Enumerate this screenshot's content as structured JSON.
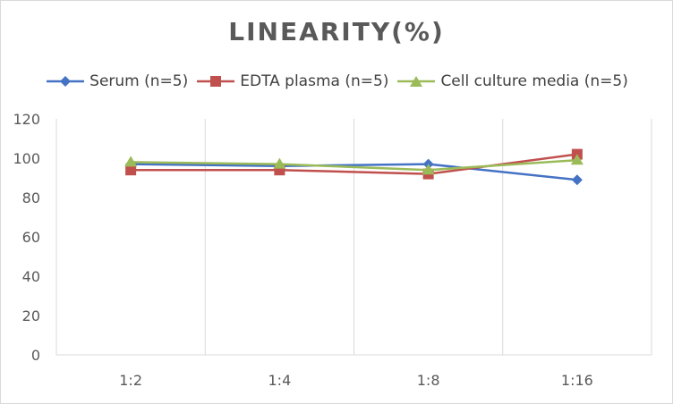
{
  "chart_data": {
    "type": "line",
    "title": "LINEARITY(%)",
    "xlabel": "",
    "ylabel": "",
    "categories": [
      "1:2",
      "1:4",
      "1:8",
      "1:16"
    ],
    "ylim": [
      0,
      120
    ],
    "yticks": [
      0,
      20,
      40,
      60,
      80,
      100,
      120
    ],
    "grid": "vertical category lines",
    "legend_position": "top",
    "series": [
      {
        "name": "Serum (n=5)",
        "values": [
          97,
          96,
          97,
          89
        ],
        "color": "#4472c4",
        "marker": "diamond"
      },
      {
        "name": "EDTA plasma (n=5)",
        "values": [
          94,
          94,
          92,
          102
        ],
        "color": "#c0504d",
        "marker": "square"
      },
      {
        "name": "Cell culture media (n=5)",
        "values": [
          98,
          97,
          94,
          99
        ],
        "color": "#9bbb59",
        "marker": "triangle"
      }
    ]
  }
}
